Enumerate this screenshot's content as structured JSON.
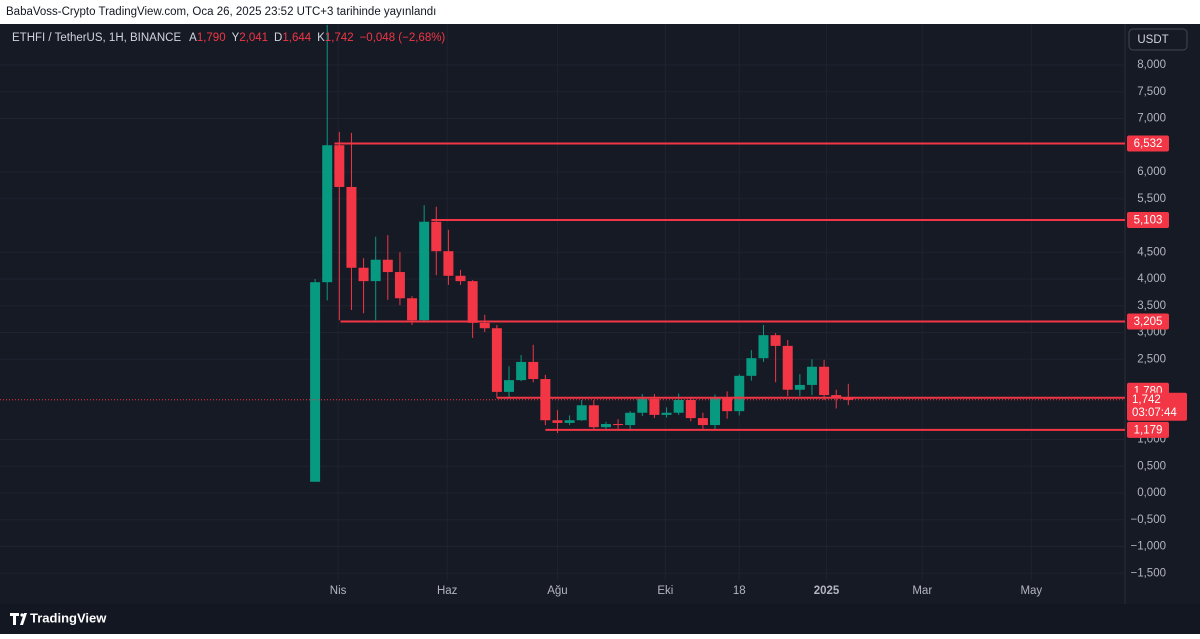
{
  "header": {
    "published": "BabaVoss-Crypto TradingView.com, Oca 26, 2025 23:52 UTC+3 tarihinde yayınlandı"
  },
  "chart_data": {
    "type": "candlestick",
    "legend": {
      "symbol": "ETHFI / TetherUS, 1H, BINANCE",
      "fields": [
        {
          "key": "A",
          "value": "1,790"
        },
        {
          "key": "Y",
          "value": "2,041"
        },
        {
          "key": "D",
          "value": "1,644"
        },
        {
          "key": "K",
          "value": "1,742"
        }
      ],
      "change": "−0,048 (−2,68%)"
    },
    "currency": "USDT",
    "up_color": "#089981",
    "down_color": "#f23645",
    "open": [
      0.21,
      3.94,
      6.5,
      5.72,
      4.21,
      3.96,
      4.36,
      4.13,
      3.64,
      3.23,
      5.07,
      4.52,
      4.06,
      3.96,
      3.18,
      3.08,
      1.89,
      2.11,
      2.45,
      2.13,
      1.36,
      1.31,
      1.36,
      1.64,
      1.23,
      1.29,
      1.27,
      1.5,
      1.76,
      1.46,
      1.5,
      1.74,
      1.4,
      1.27,
      1.79,
      1.53,
      2.19,
      2.52,
      2.95,
      2.75,
      1.93,
      2.02,
      2.36,
      1.83,
      1.79
    ],
    "high": [
      4.0,
      8.75,
      6.75,
      6.73,
      4.39,
      4.79,
      4.82,
      4.5,
      3.68,
      5.38,
      5.35,
      4.92,
      4.17,
      3.98,
      3.33,
      3.14,
      2.37,
      2.58,
      2.77,
      2.21,
      1.55,
      1.45,
      1.74,
      1.74,
      1.33,
      1.38,
      1.53,
      1.85,
      1.85,
      1.6,
      1.86,
      1.78,
      1.5,
      1.84,
      1.9,
      2.22,
      2.67,
      3.14,
      2.99,
      2.86,
      2.22,
      2.5,
      2.49,
      1.93,
      2.041
    ],
    "low": [
      0.21,
      3.6,
      3.23,
      3.42,
      3.36,
      3.23,
      3.61,
      3.51,
      3.14,
      3.2,
      4.07,
      3.89,
      3.89,
      2.9,
      3.01,
      1.78,
      1.79,
      2.09,
      2.07,
      1.27,
      1.12,
      1.27,
      1.35,
      1.18,
      1.18,
      1.2,
      1.16,
      1.44,
      1.4,
      1.41,
      1.46,
      1.34,
      1.17,
      1.17,
      1.39,
      1.45,
      2.1,
      2.45,
      2.07,
      1.81,
      1.81,
      1.83,
      1.74,
      1.58,
      1.644
    ],
    "close": [
      3.94,
      6.5,
      5.72,
      4.21,
      3.96,
      4.36,
      4.13,
      3.64,
      3.23,
      5.07,
      4.52,
      4.06,
      3.96,
      3.18,
      3.08,
      1.89,
      2.11,
      2.45,
      2.13,
      1.36,
      1.31,
      1.36,
      1.64,
      1.23,
      1.29,
      1.27,
      1.5,
      1.76,
      1.46,
      1.5,
      1.74,
      1.4,
      1.27,
      1.79,
      1.53,
      2.19,
      2.52,
      2.95,
      2.75,
      1.93,
      2.02,
      2.36,
      1.83,
      1.79,
      1.742
    ],
    "levels": [
      {
        "value": 6.532,
        "label": "6,532",
        "from": 1.6
      },
      {
        "value": 5.103,
        "label": "5,103",
        "from": 9.6
      },
      {
        "value": 3.205,
        "label": "3,205",
        "from": 2.1
      },
      {
        "value": 1.78,
        "label": "1,780",
        "from": 15
      },
      {
        "value": 1.179,
        "label": "1,179",
        "from": 19
      }
    ],
    "last_price": {
      "value": 1.742,
      "label": "1,742",
      "countdown": "03:07:44"
    },
    "xlim": [
      -26,
      66.83
    ],
    "xticks": [
      {
        "value": 1.9,
        "label": "Nis"
      },
      {
        "value": 10.9,
        "label": "Haz"
      },
      {
        "value": 20,
        "label": "Ağu"
      },
      {
        "value": 28.9,
        "label": "Eki"
      },
      {
        "value": 35,
        "label": "18"
      },
      {
        "value": 42.2,
        "label": "2025"
      },
      {
        "value": 50.1,
        "label": "Mar"
      },
      {
        "value": 59.1,
        "label": "May"
      }
    ],
    "ylim": [
      -1.626,
      8.766
    ],
    "yticks": [
      {
        "value": 8,
        "label": "8,000"
      },
      {
        "value": 7.5,
        "label": "7,500"
      },
      {
        "value": 7,
        "label": "7,000"
      },
      {
        "value": 6,
        "label": "6,000"
      },
      {
        "value": 5.5,
        "label": "5,500"
      },
      {
        "value": 4.5,
        "label": "4,500"
      },
      {
        "value": 4,
        "label": "4,000"
      },
      {
        "value": 3.5,
        "label": "3,500"
      },
      {
        "value": 3,
        "label": "3,000"
      },
      {
        "value": 2.5,
        "label": "2,500"
      },
      {
        "value": 1,
        "label": "1,000"
      },
      {
        "value": 0.5,
        "label": "0,500"
      },
      {
        "value": 0,
        "label": "0,000"
      },
      {
        "value": -0.5,
        "label": "−0,500"
      },
      {
        "value": -1,
        "label": "−1,000"
      },
      {
        "value": -1.5,
        "label": "−1,500"
      }
    ],
    "grid": true
  },
  "footer": {
    "brand": "TradingView"
  }
}
